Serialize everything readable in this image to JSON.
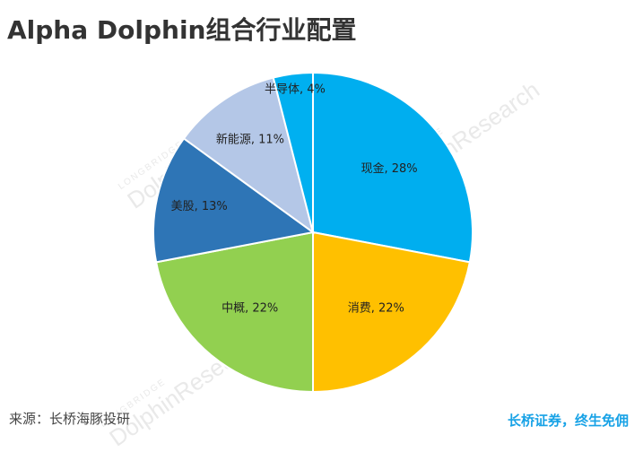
{
  "title": "Alpha Dolphin组合行业配置",
  "chart_data": {
    "type": "pie",
    "slices": [
      {
        "label": "现金",
        "value": 28,
        "color": "#00aeef"
      },
      {
        "label": "消费",
        "value": 22,
        "color": "#ffc000"
      },
      {
        "label": "中概",
        "value": 22,
        "color": "#92d050"
      },
      {
        "label": "美股",
        "value": 13,
        "color": "#2e75b6"
      },
      {
        "label": "新能源",
        "value": 11,
        "color": "#b4c7e7"
      },
      {
        "label": "半导体",
        "value": 4,
        "color": "#00b0f0"
      }
    ],
    "label_format": "{label}, {value}%"
  },
  "watermarks": [
    {
      "main": "DolphinResearch",
      "small": "LONGBRIDGE"
    },
    {
      "main": "DolphinResearch",
      "small": "LONGBRIDGE"
    },
    {
      "main": "DolphinResearch",
      "small": "LONGBRIDGE"
    }
  ],
  "footer": {
    "source": "来源：长桥海豚投研",
    "brand": "长桥证券，终生免佣"
  }
}
